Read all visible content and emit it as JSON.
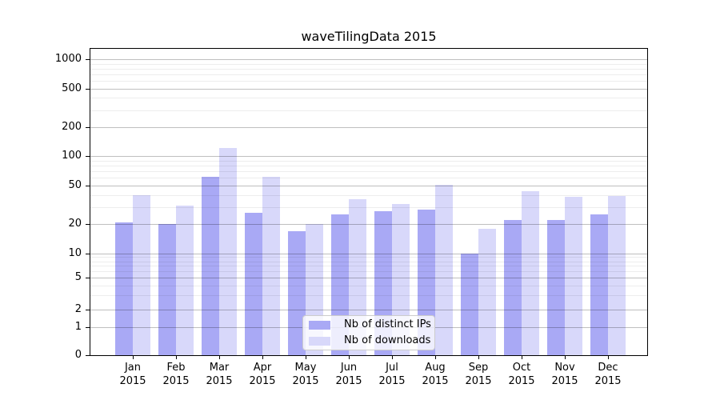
{
  "title": "waveTilingData 2015",
  "legend": {
    "items": [
      {
        "label": "Nb of distinct IPs",
        "color": "#a9a9f5"
      },
      {
        "label": "Nb of downloads",
        "color": "#d8d8fa"
      }
    ]
  },
  "y_axis": {
    "tick_labels": [
      "0",
      "1",
      "2",
      "5",
      "10",
      "20",
      "50",
      "100",
      "200",
      "500",
      "1000"
    ]
  },
  "x_axis": {
    "year_line": "2015"
  },
  "chart_data": {
    "type": "bar",
    "title": "waveTilingData 2015",
    "categories": [
      "Jan",
      "Feb",
      "Mar",
      "Apr",
      "May",
      "Jun",
      "Jul",
      "Aug",
      "Sep",
      "Oct",
      "Nov",
      "Dec"
    ],
    "year": "2015",
    "series": [
      {
        "name": "Nb of distinct IPs",
        "color": "#a9a9f5",
        "values": [
          21,
          20,
          62,
          26,
          17,
          25,
          27,
          28,
          10,
          22,
          22,
          25
        ]
      },
      {
        "name": "Nb of downloads",
        "color": "#d8d8fa",
        "values": [
          40,
          31,
          122,
          61,
          20,
          36,
          32,
          51,
          18,
          44,
          38,
          39
        ]
      }
    ],
    "yticks": [
      0,
      1,
      2,
      5,
      10,
      20,
      50,
      100,
      200,
      500,
      1000
    ],
    "yscale": "log-like with compressed 0-10 region (ticks 0,1,2,5,10,20,50,100,200,500,1000)",
    "ylim": [
      0,
      1300
    ],
    "grid": true,
    "grid_major_color": "#c0c0c0",
    "grid_minor_color": "#ececec",
    "legend_position": "lower center inside plot"
  }
}
